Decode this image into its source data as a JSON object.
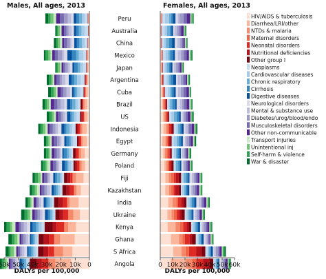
{
  "chart_data": {
    "type": "bar",
    "orientation": "horizontal",
    "stacked": true,
    "xlabel": "DALYs per 100,000",
    "categories": [
      "Peru",
      "Australia",
      "China",
      "Mexico",
      "Japan",
      "Argentina",
      "Cuba",
      "Brazil",
      "US",
      "Indonesia",
      "Egypt",
      "Germany",
      "Poland",
      "Fiji",
      "Kazakhstan",
      "India",
      "Ukraine",
      "Kenya",
      "Ghana",
      "S Africa",
      "Angola"
    ],
    "legend_position": "right",
    "panels": [
      {
        "title": "Males, All ages, 2013",
        "x_direction": "reversed",
        "xlim": [
          0,
          60000
        ],
        "ticks": [
          "60k",
          "50k",
          "40k",
          "30k",
          "20k",
          "10k",
          "0"
        ],
        "totals": [
          31000,
          24000,
          25000,
          32000,
          24000,
          30000,
          29000,
          33000,
          30000,
          36000,
          32000,
          32000,
          34000,
          40000,
          42000,
          45000,
          48000,
          60000,
          57000,
          59000,
          64000
        ]
      },
      {
        "title": "Females, All ages, 2013",
        "x_direction": "normal",
        "xlim": [
          0,
          60000
        ],
        "ticks": [
          "0",
          "10k",
          "20k",
          "30k",
          "40k",
          "50k",
          "60k"
        ],
        "totals": [
          27000,
          21000,
          22000,
          26000,
          19000,
          24000,
          25000,
          26000,
          27000,
          30000,
          29000,
          25000,
          26000,
          34000,
          34000,
          40000,
          36000,
          42000,
          43000,
          53000,
          57000
        ]
      }
    ],
    "series": [
      {
        "name": "HIV/AIDS & tuberculosis",
        "color": "#fde0d2"
      },
      {
        "name": "Diarrhea/LRI/other",
        "color": "#fbb59a"
      },
      {
        "name": "NTDs & malaria",
        "color": "#f5896a"
      },
      {
        "name": "Maternal disorders",
        "color": "#ef6548"
      },
      {
        "name": "Neonatal disorders",
        "color": "#dd2a23"
      },
      {
        "name": "Nutritional deficiencies",
        "color": "#b5121b"
      },
      {
        "name": "Other group I",
        "color": "#7a0510"
      },
      {
        "name": "Neoplasms",
        "color": "#c6dbef"
      },
      {
        "name": "Cardiovascular diseases",
        "color": "#a6cbe8"
      },
      {
        "name": "Chronic respiratory",
        "color": "#6aaed6"
      },
      {
        "name": "Cirrhosis",
        "color": "#3787c0"
      },
      {
        "name": "Digestive diseases",
        "color": "#08519c"
      },
      {
        "name": "Neurological disorders",
        "color": "#dadaeb"
      },
      {
        "name": "Mental & substance use",
        "color": "#bcbddc"
      },
      {
        "name": "Diabetes/urog/blood/endo",
        "color": "#9e9ac8"
      },
      {
        "name": "Musculoskeletal disorders",
        "color": "#756bb1"
      },
      {
        "name": "Other non-communicable",
        "color": "#54278f"
      },
      {
        "name": "Transport injuries",
        "color": "#c7e9c0"
      },
      {
        "name": "Unintentional inj",
        "color": "#74c476"
      },
      {
        "name": "Self-harm & violence",
        "color": "#31a354"
      },
      {
        "name": "War & disaster",
        "color": "#006d2c"
      }
    ]
  }
}
